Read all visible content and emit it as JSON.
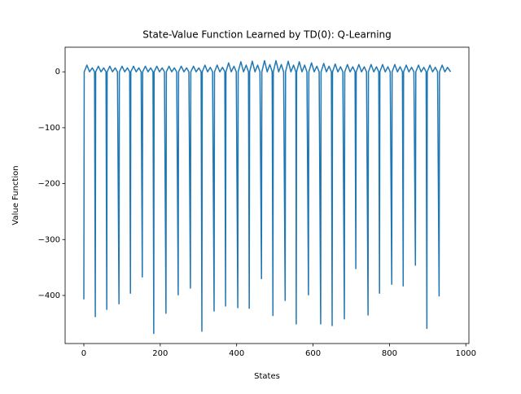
{
  "chart_data": {
    "type": "line",
    "title": "State-Value Function Learned by TD(0): Q-Learning",
    "x_label": "States",
    "y_label": "Value Function",
    "xlim": [
      -49,
      1008
    ],
    "ylim": [
      -486,
      44
    ],
    "xticks": [
      0,
      200,
      400,
      600,
      800,
      1000
    ],
    "yticks": [
      {
        "value": -400,
        "label": "−400"
      },
      {
        "value": -300,
        "label": "−300"
      },
      {
        "value": -200,
        "label": "−200"
      },
      {
        "value": -100,
        "label": "−100"
      },
      0
    ],
    "series": [
      {
        "color": "#1f77b4",
        "x": [
          0,
          1,
          8,
          15,
          22,
          28,
          30,
          31,
          38,
          45,
          52,
          58,
          60,
          61,
          68,
          75,
          82,
          88,
          92,
          93,
          100,
          107,
          114,
          120,
          122,
          123,
          130,
          137,
          144,
          150,
          153,
          154,
          161,
          168,
          175,
          181,
          183,
          184,
          191,
          198,
          205,
          211,
          215,
          216,
          223,
          230,
          237,
          243,
          247,
          248,
          255,
          262,
          269,
          275,
          279,
          280,
          287,
          294,
          301,
          307,
          309,
          310,
          317,
          324,
          331,
          337,
          341,
          342,
          349,
          356,
          363,
          369,
          371,
          372,
          379,
          386,
          393,
          399,
          403,
          404,
          411,
          418,
          425,
          431,
          433,
          434,
          441,
          448,
          455,
          461,
          465,
          466,
          473,
          480,
          487,
          493,
          495,
          496,
          503,
          510,
          517,
          523,
          527,
          528,
          535,
          542,
          549,
          555,
          556,
          557,
          564,
          571,
          578,
          584,
          588,
          589,
          596,
          603,
          610,
          616,
          620,
          621,
          628,
          635,
          642,
          648,
          650,
          651,
          658,
          665,
          672,
          678,
          682,
          683,
          690,
          697,
          704,
          710,
          712,
          713,
          720,
          727,
          734,
          740,
          744,
          745,
          752,
          759,
          766,
          772,
          774,
          775,
          782,
          789,
          796,
          802,
          806,
          807,
          814,
          821,
          828,
          834,
          836,
          837,
          844,
          851,
          858,
          864,
          868,
          869,
          876,
          883,
          890,
          896,
          898,
          899,
          906,
          913,
          920,
          926,
          930,
          931,
          938,
          945,
          952,
          960
        ],
        "values": [
          -407,
          0,
          12,
          0,
          7,
          0,
          -438,
          0,
          10,
          0,
          7,
          0,
          -425,
          0,
          10,
          0,
          7,
          0,
          -415,
          0,
          10,
          0,
          7,
          0,
          -396,
          0,
          10,
          0,
          7,
          0,
          -367,
          0,
          10,
          0,
          7,
          0,
          -468,
          0,
          10,
          0,
          7,
          0,
          -432,
          0,
          10,
          0,
          7,
          0,
          -399,
          0,
          10,
          0,
          7,
          0,
          -387,
          0,
          10,
          0,
          7,
          0,
          -464,
          0,
          12,
          0,
          8,
          0,
          -428,
          0,
          12,
          0,
          8,
          0,
          -419,
          0,
          16,
          0,
          10,
          0,
          -422,
          0,
          18,
          0,
          12,
          0,
          -423,
          0,
          19,
          0,
          12,
          0,
          -370,
          0,
          20,
          0,
          13,
          0,
          -436,
          0,
          20,
          0,
          13,
          0,
          -409,
          0,
          19,
          0,
          12,
          0,
          -451,
          0,
          18,
          0,
          12,
          0,
          -399,
          0,
          16,
          0,
          10,
          0,
          -451,
          0,
          15,
          0,
          10,
          0,
          -454,
          0,
          14,
          0,
          9,
          0,
          -442,
          0,
          13,
          0,
          9,
          0,
          -352,
          0,
          13,
          0,
          9,
          0,
          -435,
          0,
          13,
          0,
          9,
          0,
          -396,
          0,
          13,
          0,
          9,
          0,
          -380,
          0,
          13,
          0,
          9,
          0,
          -383,
          0,
          12,
          0,
          8,
          0,
          -346,
          0,
          12,
          0,
          8,
          0,
          -459,
          0,
          12,
          0,
          8,
          0,
          -401,
          0,
          12,
          0,
          8,
          0
        ]
      }
    ]
  }
}
